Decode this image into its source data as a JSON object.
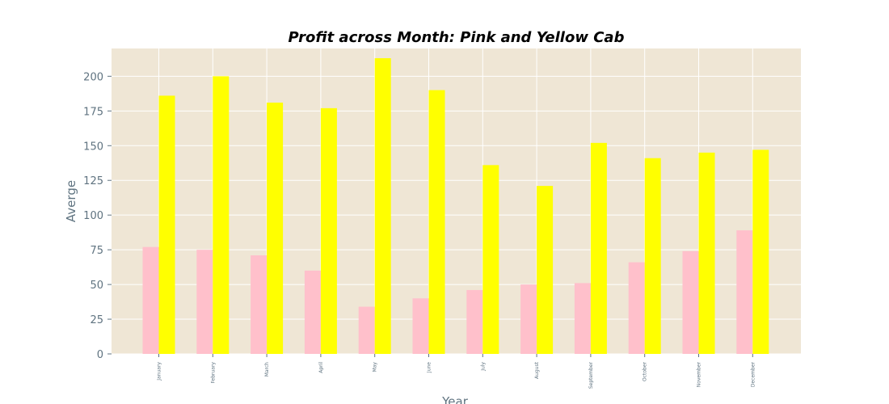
{
  "chart_data": {
    "type": "bar",
    "title": "Profit across Month: Pink and Yellow Cab",
    "xlabel": "Year",
    "ylabel": "Averge",
    "categories": [
      "January",
      "February",
      "March",
      "April",
      "May",
      "June",
      "July",
      "August",
      "September",
      "October",
      "November",
      "December"
    ],
    "series": [
      {
        "values": [
          77,
          75,
          71,
          60,
          34,
          40,
          46,
          50,
          51,
          66,
          74,
          89
        ],
        "color": "#ffc0cb"
      },
      {
        "values": [
          186,
          200,
          181,
          177,
          213,
          190,
          136,
          121,
          152,
          141,
          145,
          147
        ],
        "color": "#ffff00"
      }
    ],
    "ylim": [
      0,
      220
    ],
    "yticks": [
      0,
      25,
      50,
      75,
      100,
      125,
      150,
      175,
      200
    ],
    "grid": true,
    "plot_background": "#efe6d5",
    "grid_color": "#ffffff"
  }
}
